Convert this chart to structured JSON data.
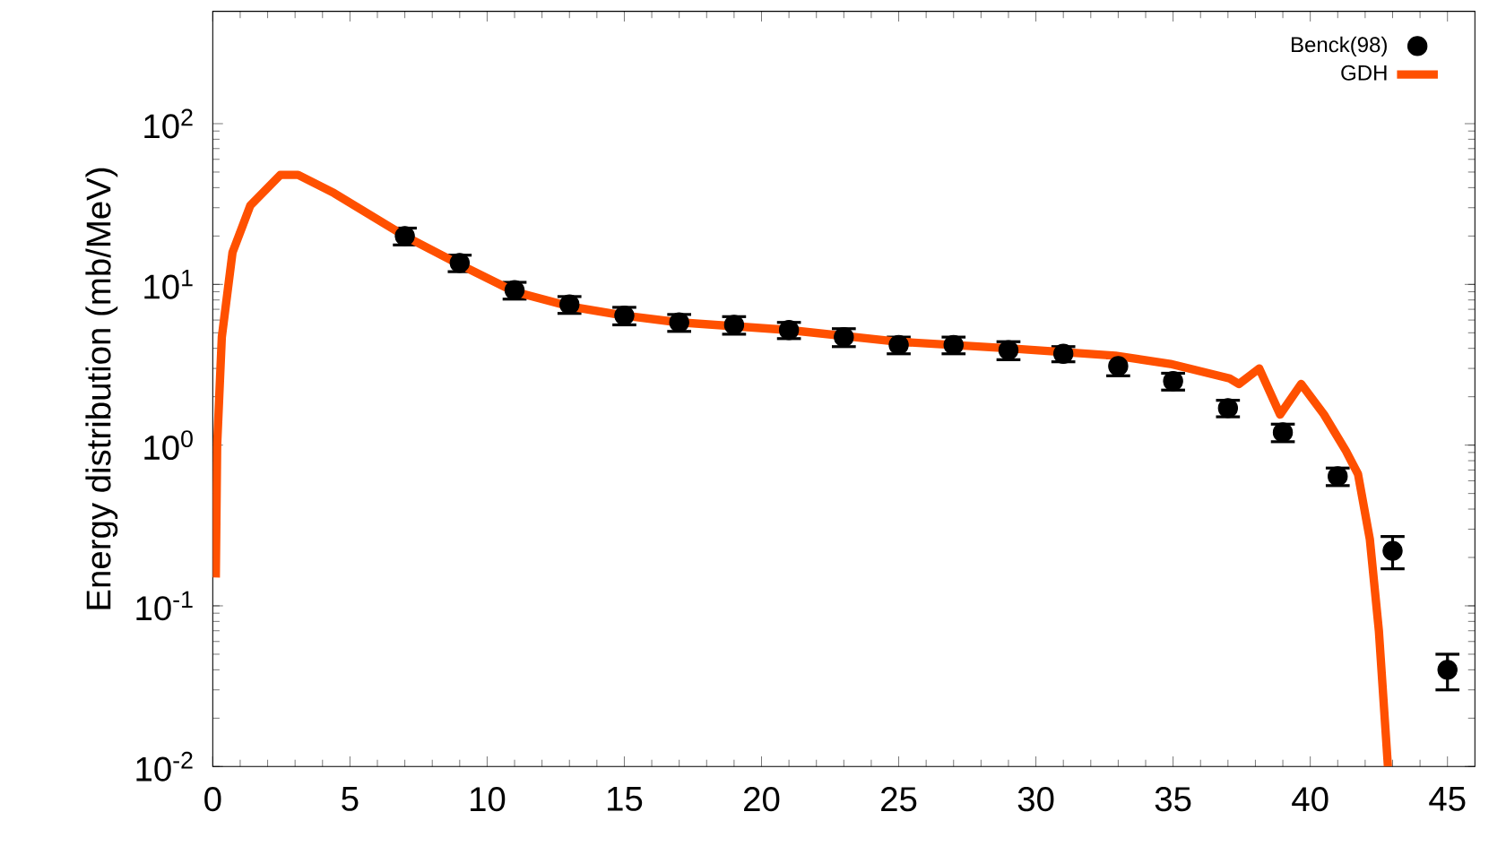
{
  "chart_data": {
    "type": "scatter",
    "ylabel": "Energy distribution (mb/MeV)",
    "log": "y",
    "legend": "top right",
    "xlim": [
      0,
      46
    ],
    "ylim": [
      0.01,
      500
    ],
    "xticks": [
      0,
      5,
      10,
      15,
      20,
      25,
      30,
      35,
      40,
      45
    ],
    "yticks": [
      {
        "value": 0.01,
        "label": "10$^{-2}$"
      },
      {
        "value": 0.1,
        "label": "10$^{-1}$"
      },
      {
        "value": 1,
        "label": "10$^{0}$"
      },
      {
        "value": 10,
        "label": "10$^{1}$"
      },
      {
        "value": 100,
        "label": "10$^{2}$"
      }
    ],
    "series": [
      {
        "name": "Benck(98)",
        "marker": "circle",
        "color": "#000000",
        "x": [
          7,
          9,
          11,
          13,
          15,
          17,
          19,
          21,
          23,
          25,
          27,
          29,
          31,
          33,
          35,
          37,
          39,
          41,
          43,
          45
        ],
        "values": [
          20,
          13.6,
          9.2,
          7.5,
          6.4,
          5.8,
          5.6,
          5.2,
          4.7,
          4.2,
          4.2,
          3.9,
          3.7,
          3.1,
          2.5,
          1.7,
          1.2,
          0.64,
          0.22,
          0.04
        ],
        "errors": [
          2.4,
          1.6,
          1.1,
          0.9,
          0.8,
          0.7,
          0.7,
          0.6,
          0.6,
          0.5,
          0.5,
          0.5,
          0.4,
          0.4,
          0.3,
          0.2,
          0.15,
          0.08,
          [
            0.17,
            0.27
          ],
          [
            0.03,
            0.05
          ]
        ]
      },
      {
        "name": "GDH",
        "type": "line",
        "marker": "none",
        "line_style": "solid",
        "color": "#ff5000",
        "x": [
          0.11,
          0.16,
          0.33,
          0.72,
          1.37,
          2.46,
          3.11,
          4.42,
          7,
          9,
          11,
          13,
          15,
          17,
          21,
          25,
          29,
          32.9,
          34.9,
          37.06,
          37.4,
          38.14,
          38.9,
          39.67,
          40.5,
          41.3,
          41.74,
          42.17,
          42.5,
          42.83
        ],
        "values": [
          0.15,
          1.0,
          4.7,
          15.8,
          31,
          48,
          48,
          37,
          20,
          13.3,
          9.0,
          7.3,
          6.4,
          5.8,
          5.2,
          4.4,
          4.0,
          3.6,
          3.2,
          2.6,
          2.4,
          3.0,
          1.55,
          2.4,
          1.55,
          0.92,
          0.66,
          0.26,
          0.07,
          0.01
        ]
      }
    ]
  }
}
